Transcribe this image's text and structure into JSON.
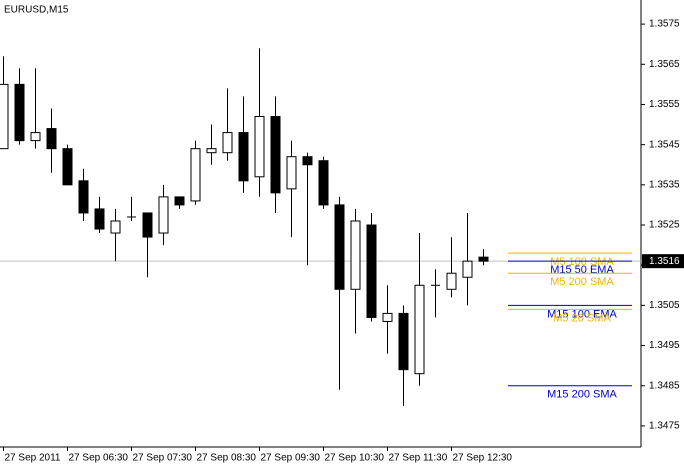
{
  "chart_data": {
    "type": "candlestick",
    "title": "EURUSD,M15",
    "categories": [
      "27 Sep 2011",
      null,
      null,
      null,
      "27 Sep 06:30",
      null,
      null,
      null,
      "27 Sep 07:30",
      null,
      null,
      null,
      "27 Sep 08:30",
      null,
      null,
      null,
      "27 Sep 09:30",
      null,
      null,
      null,
      "27 Sep 10:30",
      null,
      null,
      null,
      "27 Sep 11:30",
      null,
      null,
      null,
      "27 Sep 12:30",
      null,
      null
    ],
    "open": [
      1.3544,
      1.356,
      1.3546,
      1.3549,
      1.3544,
      1.3536,
      1.3529,
      1.3523,
      1.3527,
      1.3528,
      1.3523,
      1.3532,
      1.3531,
      1.3543,
      1.3543,
      1.3548,
      1.3537,
      1.3552,
      1.3534,
      1.3542,
      1.3541,
      1.353,
      1.3509,
      1.3525,
      1.3501,
      1.3503,
      1.3488,
      1.351,
      1.3509,
      1.3512,
      1.3517
    ],
    "high": [
      1.3567,
      1.3564,
      1.3564,
      1.3554,
      1.3545,
      1.3539,
      1.3532,
      1.3529,
      1.3532,
      1.3528,
      1.3535,
      1.3532,
      1.3546,
      1.355,
      1.3559,
      1.3557,
      1.3569,
      1.3557,
      1.3546,
      1.3543,
      1.3542,
      1.3532,
      1.3529,
      1.3528,
      1.351,
      1.3505,
      1.3523,
      1.3514,
      1.3522,
      1.3528,
      1.3519
    ],
    "low": [
      1.3544,
      1.3545,
      1.3544,
      1.3538,
      1.3535,
      1.3526,
      1.3523,
      1.3516,
      1.3526,
      1.3512,
      1.352,
      1.3529,
      1.353,
      1.354,
      1.3541,
      1.3533,
      1.3532,
      1.3528,
      1.3522,
      1.3515,
      1.3529,
      1.3484,
      1.3498,
      1.3501,
      1.3493,
      1.348,
      1.3485,
      1.3502,
      1.3507,
      1.3505,
      1.3515
    ],
    "close": [
      1.356,
      1.3546,
      1.3548,
      1.3544,
      1.3535,
      1.3528,
      1.3524,
      1.3526,
      1.3527,
      1.3522,
      1.3532,
      1.353,
      1.3544,
      1.3544,
      1.3548,
      1.3536,
      1.3552,
      1.3533,
      1.3542,
      1.354,
      1.353,
      1.3509,
      1.3526,
      1.3502,
      1.3503,
      1.3489,
      1.351,
      1.351,
      1.3513,
      1.3516,
      1.3516
    ],
    "up_color": "#ffffff",
    "down_color": "#000000",
    "ylim": [
      1.347,
      1.3581
    ],
    "yticks": [
      1.3475,
      1.3485,
      1.3495,
      1.3505,
      1.3515,
      1.3525,
      1.3535,
      1.3545,
      1.3555,
      1.3565,
      1.3575
    ],
    "current_price": 1.3516,
    "levels": [
      {
        "name": "M5 100 SMA",
        "color": "#f0b400",
        "value": 1.3518
      },
      {
        "name": "M15 50 EMA",
        "color": "#0000cc",
        "value": 1.3516
      },
      {
        "name": "M5 200 SMA",
        "color": "#f0b400",
        "value": 1.3513
      },
      {
        "name": "M15 100 EMA",
        "color": "#0000cc",
        "value": 1.3505
      },
      {
        "name": "M5 20 SMA",
        "color": "#f0b400",
        "value": 1.3504
      },
      {
        "name": "M15 200 SMA",
        "color": "#0000cc",
        "value": 1.3485
      }
    ]
  }
}
